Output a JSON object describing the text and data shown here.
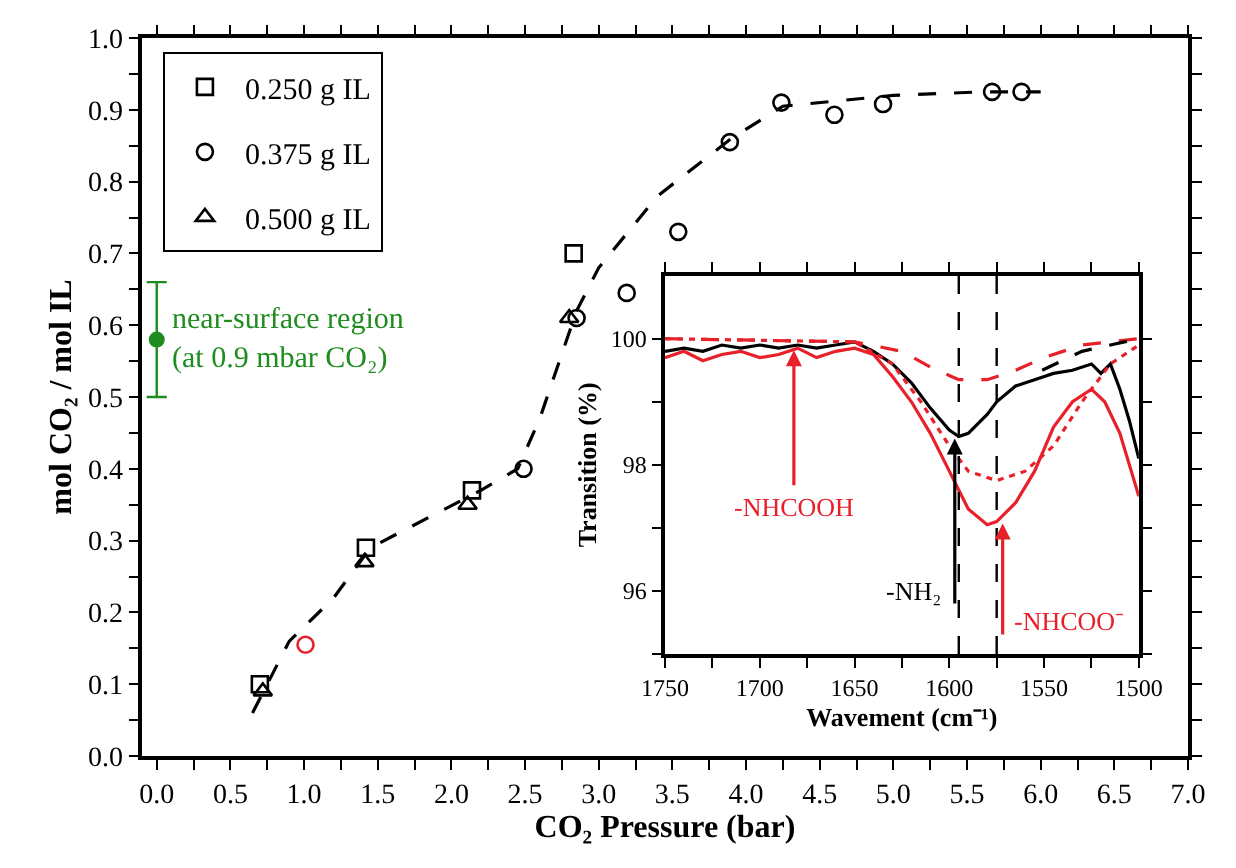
{
  "chart_data": [
    {
      "type": "scatter",
      "xlabel": "CO₂ Pressure (bar)",
      "ylabel": "mol CO₂ / mol IL",
      "xlim": [
        -0.1,
        7.0
      ],
      "ylim": [
        0,
        1.0
      ],
      "xticks": [
        {
          "value": 0,
          "label": "0.0"
        },
        {
          "value": 0.25,
          "label": null
        },
        {
          "value": 0.5,
          "label": "0.5"
        },
        {
          "value": 0.75,
          "label": null
        },
        {
          "value": 1,
          "label": "1.0"
        },
        {
          "value": 1.25,
          "label": null
        },
        {
          "value": 1.5,
          "label": "1.5"
        },
        {
          "value": 1.75,
          "label": null
        },
        {
          "value": 2,
          "label": "2.0"
        },
        {
          "value": 2.25,
          "label": null
        },
        {
          "value": 2.5,
          "label": "2.5"
        },
        {
          "value": 2.75,
          "label": null
        },
        {
          "value": 3,
          "label": "3.0"
        },
        {
          "value": 3.25,
          "label": null
        },
        {
          "value": 3.5,
          "label": "3.5"
        },
        {
          "value": 3.75,
          "label": null
        },
        {
          "value": 4,
          "label": "4.0"
        },
        {
          "value": 4.25,
          "label": null
        },
        {
          "value": 4.5,
          "label": "4.5"
        },
        {
          "value": 4.75,
          "label": null
        },
        {
          "value": 5,
          "label": "5.0"
        },
        {
          "value": 5.25,
          "label": null
        },
        {
          "value": 5.5,
          "label": "5.5"
        },
        {
          "value": 5.75,
          "label": null
        },
        {
          "value": 6,
          "label": "6.0"
        },
        {
          "value": 6.25,
          "label": null
        },
        {
          "value": 6.5,
          "label": "6.5"
        },
        {
          "value": 6.75,
          "label": null
        },
        {
          "value": 7,
          "label": "7.0"
        }
      ],
      "yticks": [
        {
          "value": 0,
          "label": "0.0"
        },
        {
          "value": 0.05,
          "label": null
        },
        {
          "value": 0.1,
          "label": "0.1"
        },
        {
          "value": 0.15,
          "label": null
        },
        {
          "value": 0.2,
          "label": "0.2"
        },
        {
          "value": 0.25,
          "label": null
        },
        {
          "value": 0.3,
          "label": "0.3"
        },
        {
          "value": 0.35,
          "label": null
        },
        {
          "value": 0.4,
          "label": "0.4"
        },
        {
          "value": 0.45,
          "label": null
        },
        {
          "value": 0.5,
          "label": "0.5"
        },
        {
          "value": 0.55,
          "label": null
        },
        {
          "value": 0.6,
          "label": "0.6"
        },
        {
          "value": 0.65,
          "label": null
        },
        {
          "value": 0.7,
          "label": "0.7"
        },
        {
          "value": 0.75,
          "label": null
        },
        {
          "value": 0.8,
          "label": "0.8"
        },
        {
          "value": 0.85,
          "label": null
        },
        {
          "value": 0.9,
          "label": "0.9"
        },
        {
          "value": 0.95,
          "label": null
        },
        {
          "value": 1.0,
          "label": "1.0"
        }
      ],
      "legend": "top left",
      "series": [
        {
          "name": "0.250 g IL",
          "type": "scatter",
          "marker": "square",
          "color": "#000000",
          "x": [
            0.7,
            1.42,
            2.14,
            2.83
          ],
          "values": [
            0.1,
            0.29,
            0.37,
            0.7
          ]
        },
        {
          "name": "0.375 g IL",
          "type": "scatter",
          "marker": "circle",
          "color": "#000000",
          "colors": [
            "#e8202a",
            "#000000",
            "#000000",
            "#000000",
            "#000000",
            "#000000",
            "#000000",
            "#000000",
            "#000000",
            "#000000",
            "#000000"
          ],
          "x": [
            1.01,
            2.49,
            2.85,
            3.19,
            3.54,
            3.89,
            4.24,
            4.6,
            4.93,
            5.67,
            5.87
          ],
          "values": [
            0.155,
            0.4,
            0.61,
            0.645,
            0.73,
            0.855,
            0.91,
            0.893,
            0.908,
            0.925,
            0.925
          ]
        },
        {
          "name": "0.500 g IL",
          "type": "scatter",
          "marker": "triangle",
          "color": "#000000",
          "x": [
            0.72,
            1.41,
            2.11,
            2.8
          ],
          "values": [
            0.09,
            0.27,
            0.35,
            0.61
          ]
        },
        {
          "type": "line",
          "line_style": "dashed",
          "color": "#000000",
          "x": [
            0.65,
            0.9,
            1.2,
            1.45,
            2.2,
            2.45,
            2.6,
            2.75,
            2.85,
            3.0,
            3.4,
            3.9,
            4.25,
            5.0,
            5.6,
            6.0
          ],
          "values": [
            0.06,
            0.16,
            0.22,
            0.29,
            0.37,
            0.4,
            0.47,
            0.56,
            0.62,
            0.68,
            0.78,
            0.86,
            0.905,
            0.92,
            0.925,
            0.925
          ]
        },
        {
          "type": "scatter",
          "marker": "circle",
          "color": "#1e8c1e",
          "x": [
            0.0
          ],
          "values": [
            0.58
          ],
          "errors": [
            [
              0.5,
              0.66
            ]
          ]
        }
      ],
      "annotations": [
        {
          "text": "near-surface region\n(at 0.9 mbar CO₂)",
          "x": 0.0,
          "y": 0.58
        }
      ]
    },
    {
      "type": "line",
      "xlabel": "Wavement (cm⁻¹)",
      "ylabel": "Transition (%)",
      "xlim": [
        1750,
        1500
      ],
      "ylim": [
        95,
        101
      ],
      "xticks": [
        1750,
        {
          "value": 1725,
          "label": null
        },
        1700,
        {
          "value": 1675,
          "label": null
        },
        1650,
        {
          "value": 1625,
          "label": null
        },
        1600,
        {
          "value": 1575,
          "label": null
        },
        1550,
        {
          "value": 1525,
          "label": null
        },
        1500
      ],
      "yticks": [
        {
          "value": 95,
          "label": null
        },
        96,
        {
          "value": 97,
          "label": null
        },
        98,
        {
          "value": 99,
          "label": null
        },
        100
      ],
      "series": [
        {
          "color": "#000000",
          "line_style": "solid",
          "x": [
            1750,
            1740,
            1730,
            1720,
            1710,
            1700,
            1690,
            1680,
            1670,
            1660,
            1650,
            1640,
            1630,
            1620,
            1610,
            1600,
            1595,
            1590,
            1580,
            1575,
            1565,
            1555,
            1545,
            1535,
            1525,
            1520,
            1515,
            1510,
            1505,
            1500
          ],
          "values": [
            99.8,
            99.85,
            99.8,
            99.9,
            99.85,
            99.9,
            99.85,
            99.9,
            99.85,
            99.9,
            99.95,
            99.8,
            99.6,
            99.3,
            98.9,
            98.55,
            98.45,
            98.5,
            98.8,
            99.0,
            99.25,
            99.35,
            99.45,
            99.5,
            99.6,
            99.45,
            99.6,
            99.2,
            98.7,
            98.1
          ]
        },
        {
          "color": "#e8202a",
          "line_style": "solid",
          "x": [
            1750,
            1740,
            1730,
            1720,
            1710,
            1700,
            1690,
            1680,
            1670,
            1660,
            1650,
            1640,
            1630,
            1620,
            1610,
            1600,
            1590,
            1580,
            1575,
            1565,
            1555,
            1545,
            1535,
            1525,
            1518,
            1510,
            1500
          ],
          "values": [
            99.7,
            99.8,
            99.65,
            99.75,
            99.8,
            99.7,
            99.75,
            99.85,
            99.7,
            99.8,
            99.85,
            99.75,
            99.4,
            99.0,
            98.5,
            97.9,
            97.3,
            97.05,
            97.1,
            97.4,
            97.9,
            98.6,
            99.0,
            99.2,
            99.0,
            98.5,
            97.5
          ]
        },
        {
          "color": "#e8202a",
          "line_style": "dashed",
          "x": [
            1750,
            1650,
            1625,
            1610,
            1595,
            1580,
            1565,
            1550,
            1530,
            1500
          ],
          "values": [
            100,
            99.95,
            99.8,
            99.55,
            99.35,
            99.35,
            99.5,
            99.7,
            99.9,
            100
          ]
        },
        {
          "color": "#e8202a",
          "line_style": "dotted",
          "x": [
            1750,
            1650,
            1630,
            1615,
            1600,
            1590,
            1575,
            1560,
            1545,
            1530,
            1515,
            1500
          ],
          "values": [
            100,
            99.95,
            99.6,
            99.0,
            98.3,
            97.9,
            97.75,
            97.9,
            98.3,
            99.0,
            99.6,
            99.9
          ]
        },
        {
          "color": "#000000",
          "line_style": "dashed",
          "x": [
            1551,
            1530,
            1500
          ],
          "values": [
            99.5,
            99.8,
            100
          ]
        }
      ],
      "ref_lines": [
        {
          "axis": "x",
          "value": 1595,
          "color": "#000000",
          "line_style": "dashed"
        },
        {
          "axis": "x",
          "value": 1575,
          "color": "#000000",
          "line_style": "dashed"
        }
      ],
      "annotations": [
        {
          "text": "-NHCOOH",
          "x": 1682,
          "y": 99.85
        },
        {
          "text": "-NH₂",
          "x": 1595,
          "y": 98.45
        },
        {
          "text": "-NHCOO⁻",
          "x": 1575,
          "y": 97.1
        }
      ]
    }
  ]
}
